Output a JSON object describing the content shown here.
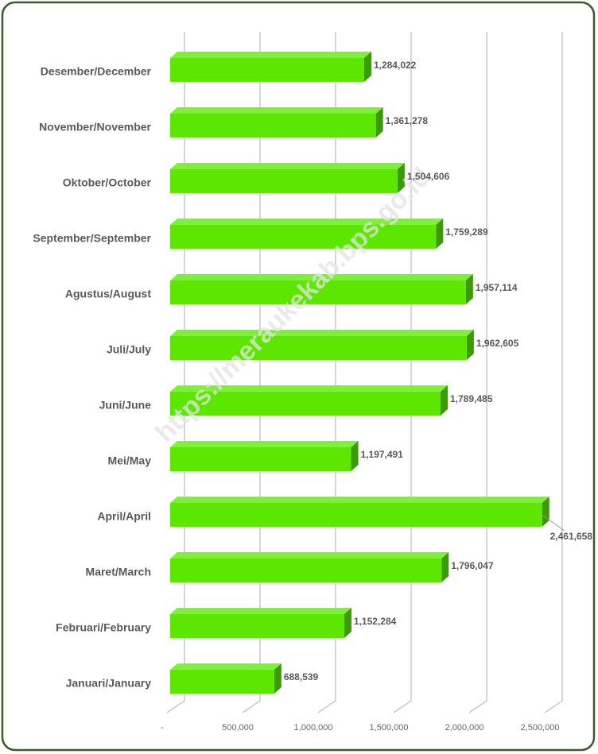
{
  "chart_data": {
    "type": "bar",
    "orientation": "horizontal",
    "watermark": "https://meraukekab.bps.go.id",
    "categories": [
      "Januari/January",
      "Februari/February",
      "Maret/March",
      "April/April",
      "Mei/May",
      "Juni/June",
      "Juli/July",
      "Agustus/August",
      "September/September",
      "Oktober/October",
      "November/November",
      "Desember/December"
    ],
    "values": [
      688539,
      1152284,
      1796047,
      2461658,
      1197491,
      1789485,
      1962605,
      1957114,
      1759289,
      1504606,
      1361278,
      1284022
    ],
    "value_labels": [
      "688,539",
      "1,152,284",
      "1,796,047",
      "2,461,658",
      "1,197,491",
      "1,789,485",
      "1,962,605",
      "1,957,114",
      "1,759,289",
      "1,504,606",
      "1,361,278",
      "1,284,022"
    ],
    "color": "#5ce600",
    "xlim": [
      0,
      2500000
    ],
    "xticks": [
      {
        "value": 0,
        "label": "-"
      },
      {
        "value": 500000,
        "label": "500,000"
      },
      {
        "value": 1000000,
        "label": "1,000,000"
      },
      {
        "value": 1500000,
        "label": "1,500,000"
      },
      {
        "value": 2000000,
        "label": "2,000,000"
      },
      {
        "value": 2500000,
        "label": "2,500,000"
      }
    ],
    "grid": true
  }
}
